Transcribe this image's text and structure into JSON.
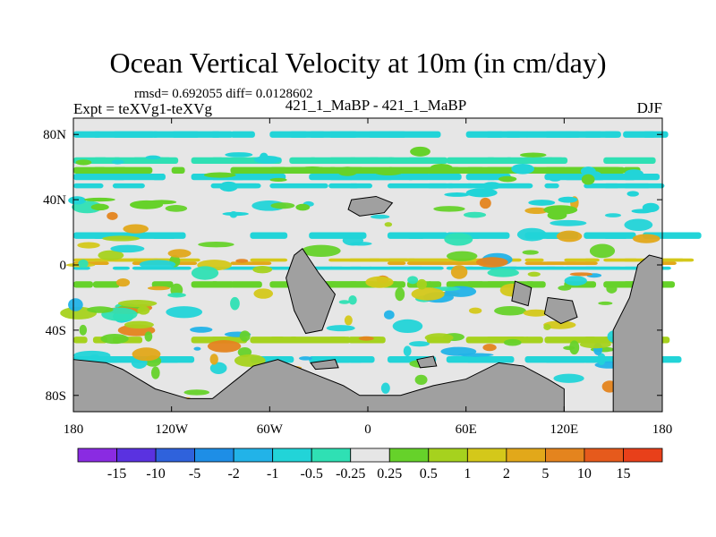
{
  "chart_data": {
    "type": "heatmap",
    "title": "Ocean Vertical Velocity at 10m (in cm/day)",
    "stats": "rmsd= 0.692055  diff= 0.0128602",
    "experiment": "Expt = teXVg1-teXVg",
    "case": "421_1_MaBP - 421_1_MaBP",
    "season": "DJF",
    "x_ticks": [
      "180",
      "120W",
      "60W",
      "0",
      "60E",
      "120E",
      "180"
    ],
    "x_tick_values": [
      -180,
      -120,
      -60,
      0,
      60,
      120,
      180
    ],
    "y_ticks": [
      "80N",
      "40N",
      "0",
      "40S",
      "80S"
    ],
    "y_tick_values": [
      80,
      40,
      0,
      -40,
      -80
    ],
    "xlim": [
      -180,
      180
    ],
    "ylim": [
      -90,
      90
    ],
    "colorbar": {
      "labels": [
        "-15",
        "-10",
        "-5",
        "-2",
        "-1",
        "-0.5",
        "-0.25",
        "0.25",
        "0.5",
        "1",
        "2",
        "5",
        "10",
        "15"
      ],
      "colors": [
        "#8a2be2",
        "#5a32e0",
        "#2f62dc",
        "#1e8ee6",
        "#22b3e8",
        "#22d4d8",
        "#2fe0b4",
        "#e6e6e6",
        "#66d22a",
        "#a6d21e",
        "#d4c81a",
        "#e2a81a",
        "#e4841e",
        "#e65a1c",
        "#e8401a"
      ]
    },
    "land_color": "#a0a0a0",
    "fields": {
      "neutral_band": "#e6e6e6"
    }
  }
}
